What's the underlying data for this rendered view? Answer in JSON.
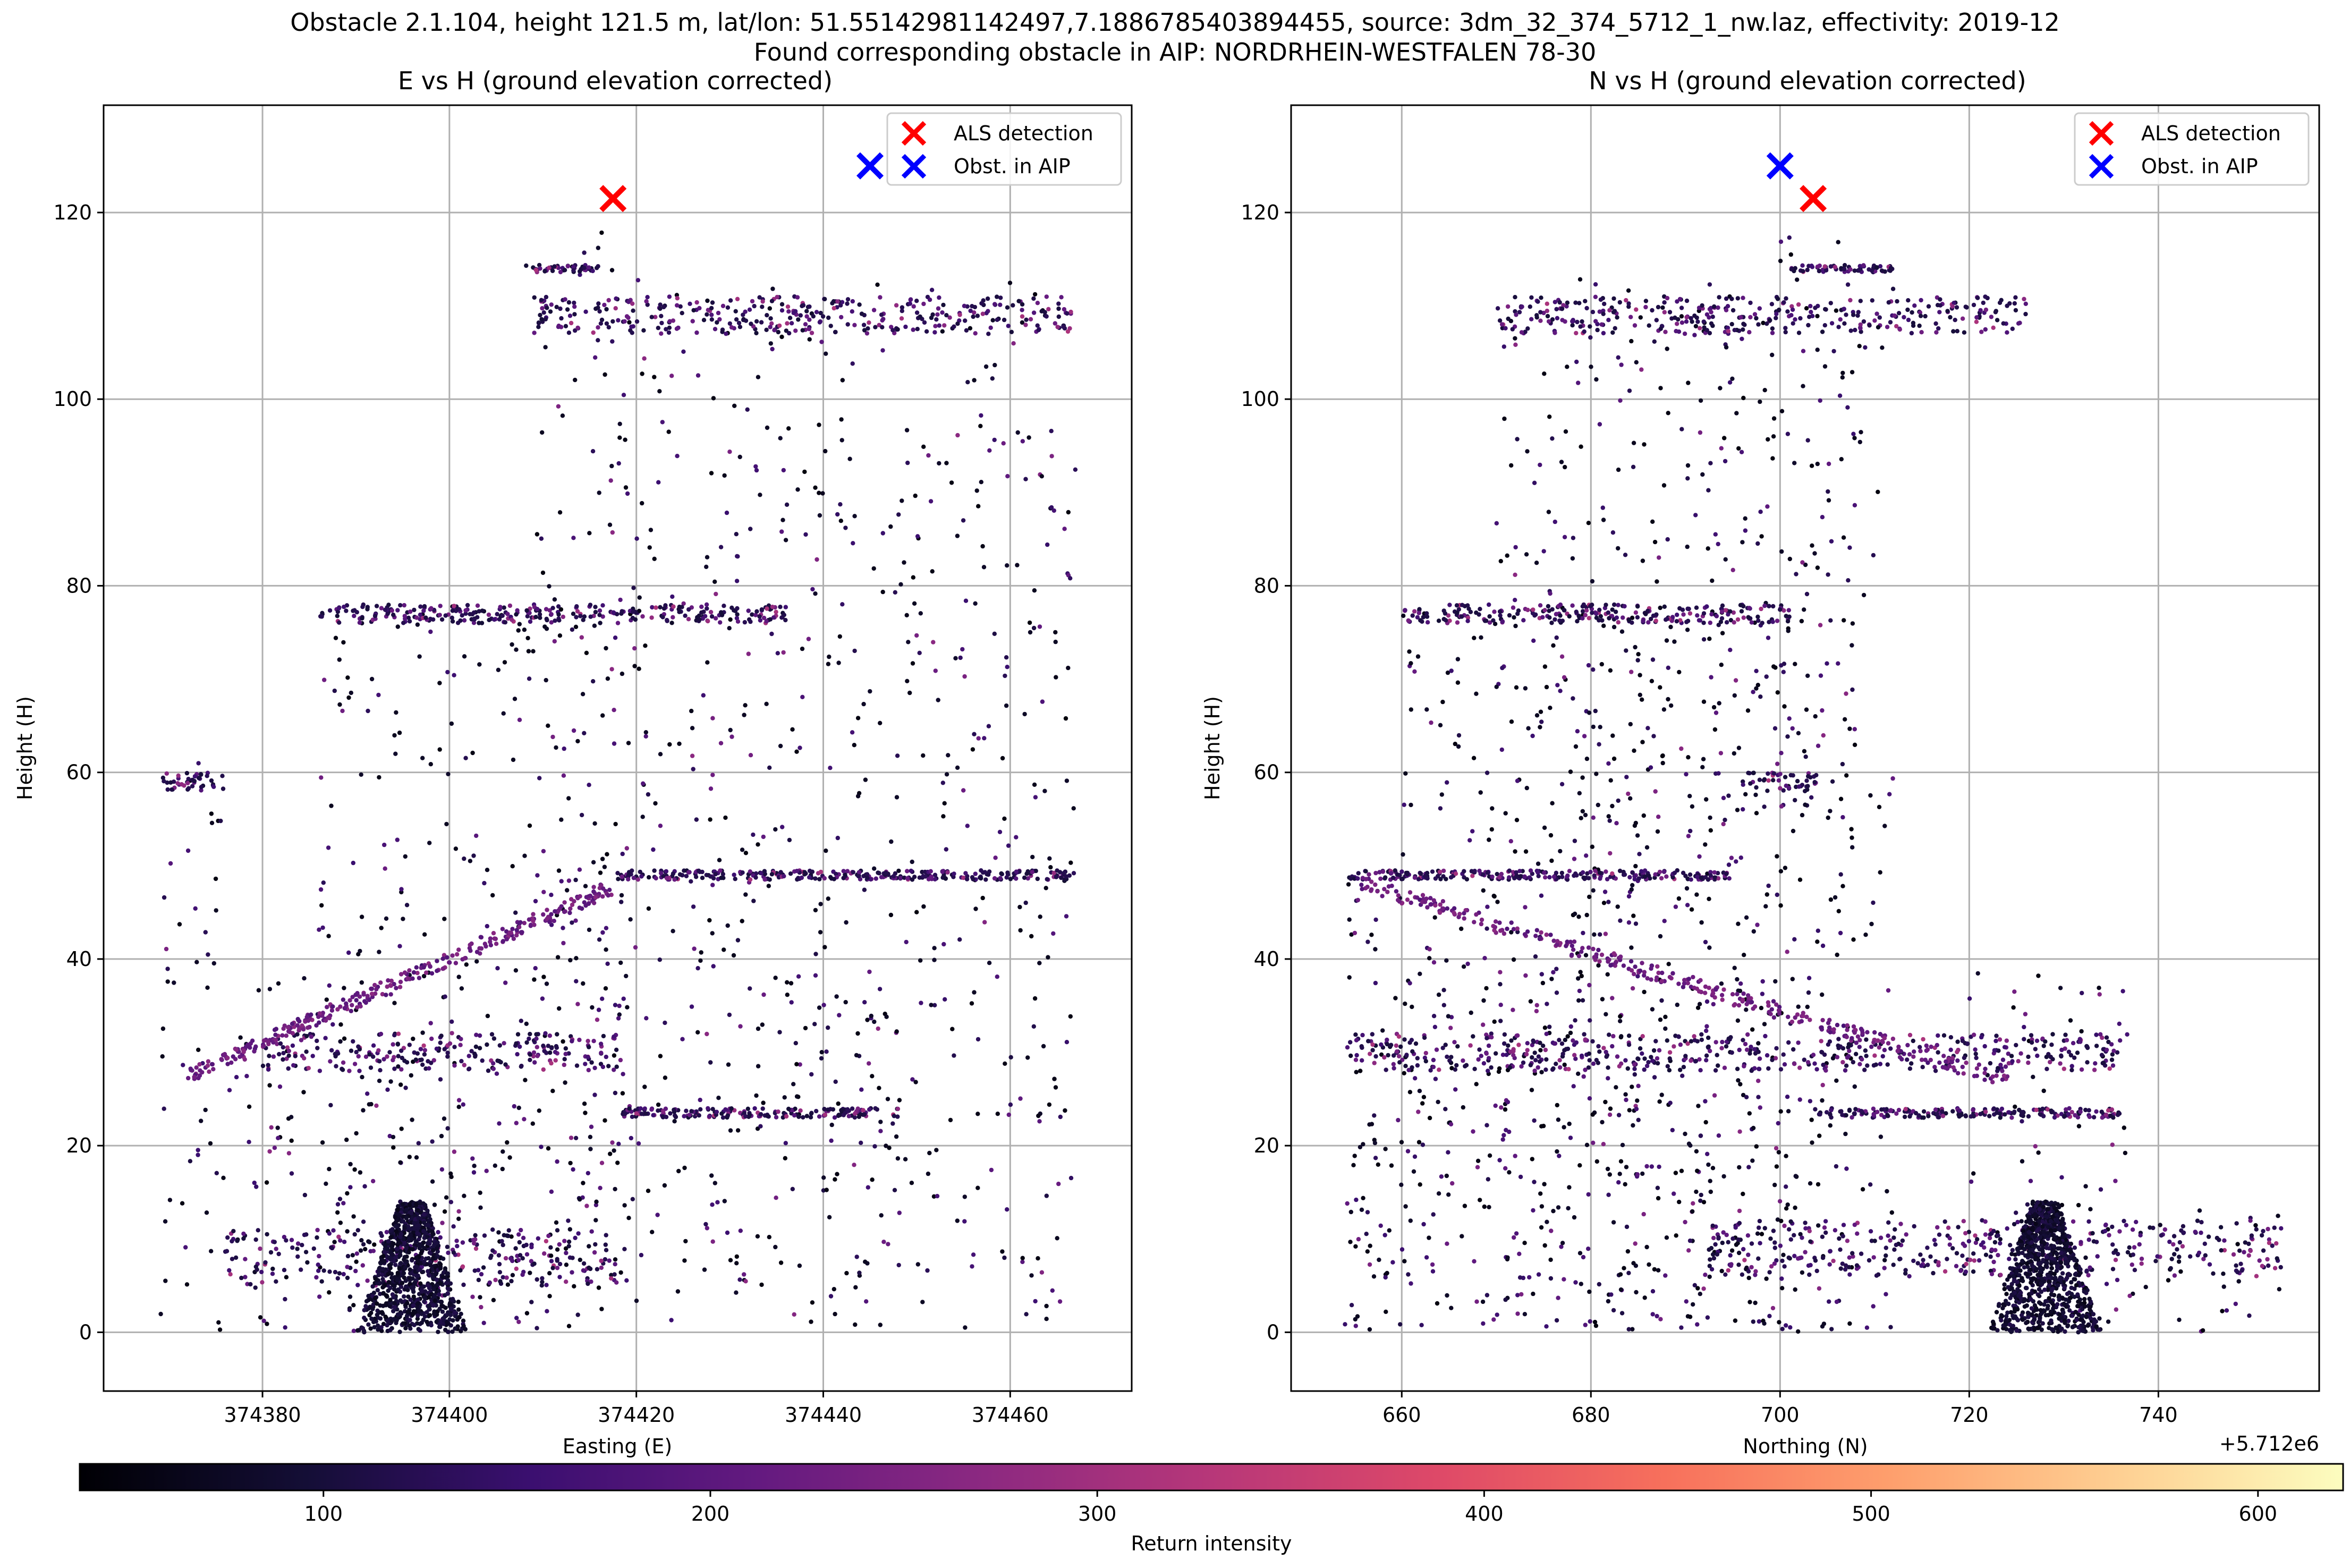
{
  "figure": {
    "title_line1": "Obstacle 2.1.104, height 121.5 m, lat/lon: 51.55142981142497,7.1886785403894455, source: 3dm_32_374_5712_1_nw.laz, effectivity: 2019-12",
    "title_line2": "Found corresponding obstacle in AIP: NORDRHEIN-WESTFALEN 78-30"
  },
  "colors": {
    "als_marker": "#ff0000",
    "aip_marker": "#0000ff",
    "grid": "#b0b0b0",
    "colormap": [
      "#000004",
      "#140e36",
      "#3b0f70",
      "#641a80",
      "#8c2981",
      "#b73779",
      "#de4968",
      "#f7705c",
      "#fe9f6d",
      "#fecf92",
      "#fcfdbf"
    ]
  },
  "chart_data": [
    {
      "type": "scatter",
      "title": "E vs H (ground elevation corrected)",
      "xlabel": "Easting (E)",
      "ylabel": "Height (H)",
      "xlim": [
        374363,
        374473
      ],
      "ylim": [
        -6.3,
        131.5
      ],
      "xticks": [
        374380,
        374400,
        374420,
        374440,
        374460
      ],
      "xtick_labels": [
        "374380",
        "374400",
        "374420",
        "374440",
        "374460"
      ],
      "yticks": [
        0,
        20,
        40,
        60,
        80,
        100,
        120
      ],
      "ytick_labels": [
        "0",
        "20",
        "40",
        "60",
        "80",
        "100",
        "120"
      ],
      "grid": true,
      "legend_position": "top-right",
      "legend": [
        {
          "label": "ALS detection",
          "marker": "x",
          "color": "#ff0000"
        },
        {
          "label": "Obst. in AIP",
          "marker": "x",
          "color": "#0000ff"
        }
      ],
      "markers": [
        {
          "series": "ALS detection",
          "x": 374417.5,
          "y": 121.5
        },
        {
          "series": "Obst. in AIP",
          "x": 374445.0,
          "y": 125.0
        }
      ],
      "point_cloud": {
        "color_by": "Return intensity",
        "approx_x_range": [
          374369,
          374467
        ],
        "approx_y_range": [
          0,
          118
        ]
      }
    },
    {
      "type": "scatter",
      "title": "N vs H (ground elevation corrected)",
      "xlabel": "Northing (N)",
      "ylabel": "Height (H)",
      "x_offset_label": "+5.712e6",
      "xlim": [
        648.3,
        757.0
      ],
      "ylim": [
        -6.3,
        131.5
      ],
      "xticks": [
        660,
        680,
        700,
        720,
        740
      ],
      "xtick_labels": [
        "660",
        "680",
        "700",
        "720",
        "740"
      ],
      "yticks": [
        0,
        20,
        40,
        60,
        80,
        100,
        120
      ],
      "ytick_labels": [
        "0",
        "20",
        "40",
        "60",
        "80",
        "100",
        "120"
      ],
      "grid": true,
      "legend_position": "top-right",
      "legend": [
        {
          "label": "ALS detection",
          "marker": "x",
          "color": "#ff0000"
        },
        {
          "label": "Obst. in AIP",
          "marker": "x",
          "color": "#0000ff"
        }
      ],
      "markers": [
        {
          "series": "ALS detection",
          "x": 703.5,
          "y": 121.5
        },
        {
          "series": "Obst. in AIP",
          "x": 700.0,
          "y": 125.0
        }
      ],
      "point_cloud": {
        "color_by": "Return intensity",
        "approx_x_range": [
          654,
          753
        ],
        "approx_y_range": [
          0,
          118
        ]
      }
    },
    {
      "type": "colorbar",
      "label": "Return intensity",
      "range": [
        37,
        622
      ],
      "ticks": [
        100,
        200,
        300,
        400,
        500,
        600
      ],
      "tick_labels": [
        "100",
        "200",
        "300",
        "400",
        "500",
        "600"
      ],
      "colormap": "magma"
    }
  ]
}
